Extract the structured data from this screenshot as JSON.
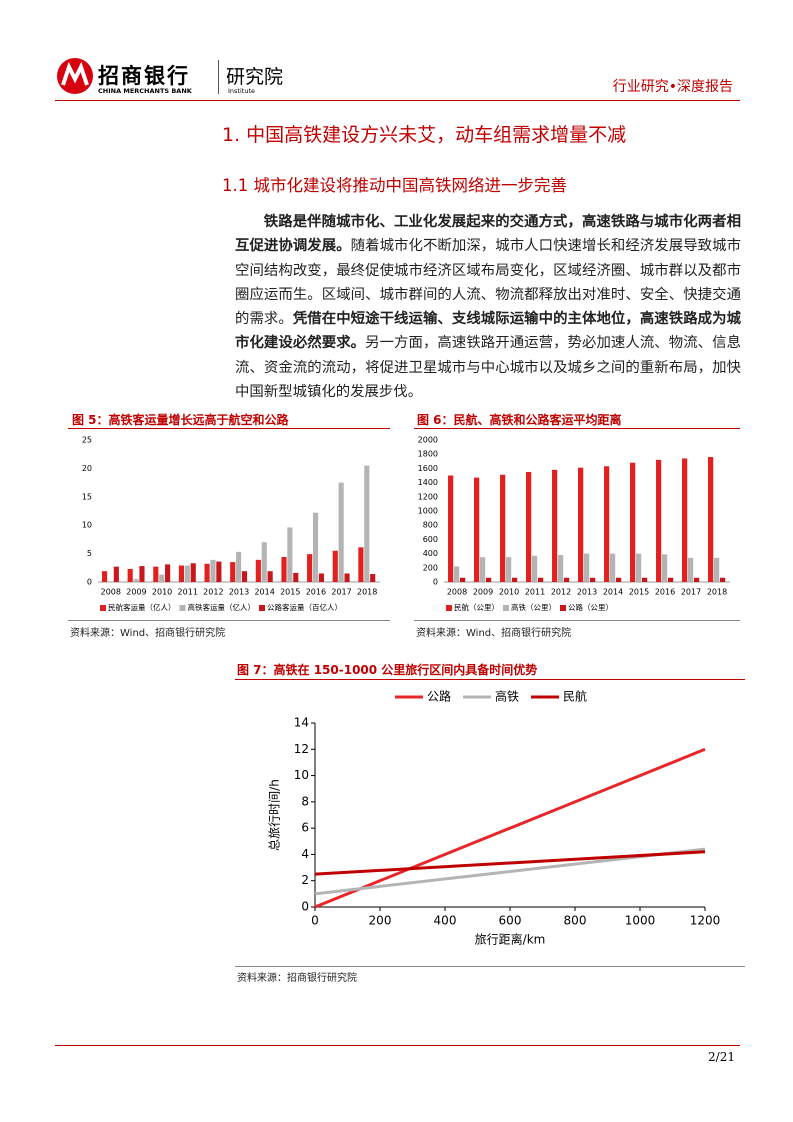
{
  "header": {
    "bank_name": "招商银行",
    "bank_name_en": "CHINA MERCHANTS BANK",
    "institute": "研究院",
    "institute_en": "Institute",
    "report_type": "行业研究•深度报告"
  },
  "headings": [
    "1.  中国高铁建设方兴未艾，动车组需求增量不减",
    "1.1  城市化建设将推动中国高铁网络进一步完善"
  ],
  "paragraph": {
    "runs": [
      {
        "text": "铁路是伴随城市化、工业化发展起来的交通方式，高速铁路与城市化两者相互促进协调发展。",
        "bold": true
      },
      {
        "text": "随着城市化不断加深，城市人口快速增长和经济发展导致城市空间结构改变，最终促使城市经济区域布局变化，区域经济圈、城市群以及都市圈应运而生。区域间、城市群间的人流、物流都释放出对准时、安全、快捷交通的需求。",
        "bold": false
      },
      {
        "text": "凭借在中短途干线运输、支线城际运输中的主体地位，高速铁路成为城市化建设必然要求。",
        "bold": true
      },
      {
        "text": "另一方面，高速铁路开通运营，势必加速人流、物流、信息流、资金流的流动，将促进卫星城市与中心城市以及城乡之间的重新布局，加快中国新型城镇化的发展步伐。",
        "bold": false
      }
    ]
  },
  "chart_data": [
    {
      "type": "bar",
      "title": "图 5：高铁客运量增长远高于航空和公路",
      "source": "资料来源：Wind、招商银行研究院",
      "categories": [
        "2008",
        "2009",
        "2010",
        "2011",
        "2012",
        "2013",
        "2014",
        "2015",
        "2016",
        "2017",
        "2018"
      ],
      "series": [
        {
          "name": "民航客运量（亿人）",
          "color": "#e2201f",
          "values": [
            1.9,
            2.3,
            2.7,
            2.9,
            3.2,
            3.5,
            3.9,
            4.4,
            4.9,
            5.5,
            6.1
          ]
        },
        {
          "name": "高铁客运量（亿人）",
          "color": "#b4b4b4",
          "values": [
            0.1,
            0.5,
            1.3,
            2.9,
            3.9,
            5.3,
            7.0,
            9.6,
            12.2,
            17.5,
            20.5
          ]
        },
        {
          "name": "公路客运量（百亿人）",
          "color": "#c8161d",
          "values": [
            2.7,
            2.8,
            3.1,
            3.3,
            3.6,
            1.9,
            1.9,
            1.6,
            1.5,
            1.5,
            1.4
          ]
        }
      ],
      "ylim": [
        0,
        25
      ],
      "yticks": [
        0,
        5,
        10,
        15,
        20,
        25
      ],
      "grid": false,
      "legend": "bottom"
    },
    {
      "type": "bar",
      "title": "图 6：民航、高铁和公路客运平均距离",
      "source": "资料来源：Wind、招商银行研究院",
      "categories": [
        "2008",
        "2009",
        "2010",
        "2011",
        "2012",
        "2013",
        "2014",
        "2015",
        "2016",
        "2017",
        "2018"
      ],
      "series": [
        {
          "name": "民航（公里）",
          "color": "#e2201f",
          "values": [
            1500,
            1470,
            1510,
            1550,
            1580,
            1610,
            1630,
            1680,
            1720,
            1740,
            1760
          ]
        },
        {
          "name": "高铁（公里）",
          "color": "#b4b4b4",
          "values": [
            220,
            350,
            350,
            370,
            380,
            400,
            400,
            400,
            390,
            340,
            340
          ]
        },
        {
          "name": "公路（公里）",
          "color": "#c8161d",
          "values": [
            60,
            60,
            60,
            60,
            60,
            60,
            60,
            60,
            60,
            60,
            60
          ]
        }
      ],
      "ylim": [
        0,
        2000
      ],
      "yticks": [
        0,
        200,
        400,
        600,
        800,
        1000,
        1200,
        1400,
        1600,
        1800,
        2000
      ],
      "grid": false,
      "legend": "bottom"
    },
    {
      "type": "line",
      "title": "图 7：高铁在 150-1000 公里旅行区间内具备时间优势",
      "source": "资料来源：招商银行研究院",
      "x": [
        0,
        1200
      ],
      "x_label": "旅行距离/km",
      "y_label": "总旅行时间/h",
      "series": [
        {
          "name": "公路",
          "color": "#e8262a",
          "values": [
            0,
            12
          ]
        },
        {
          "name": "高铁",
          "color": "#b4b4b4",
          "values": [
            1,
            4.4
          ]
        },
        {
          "name": "民航",
          "color": "#c00000",
          "values": [
            2.5,
            4.2
          ]
        }
      ],
      "xlim": [
        0,
        1200
      ],
      "xticks": [
        0,
        200,
        400,
        600,
        800,
        1000,
        1200
      ],
      "ylim": [
        0,
        14
      ],
      "yticks": [
        0,
        2,
        4,
        6,
        8,
        10,
        12,
        14
      ],
      "grid": false,
      "legend": "top"
    }
  ],
  "footer": {
    "page": "2/21"
  }
}
